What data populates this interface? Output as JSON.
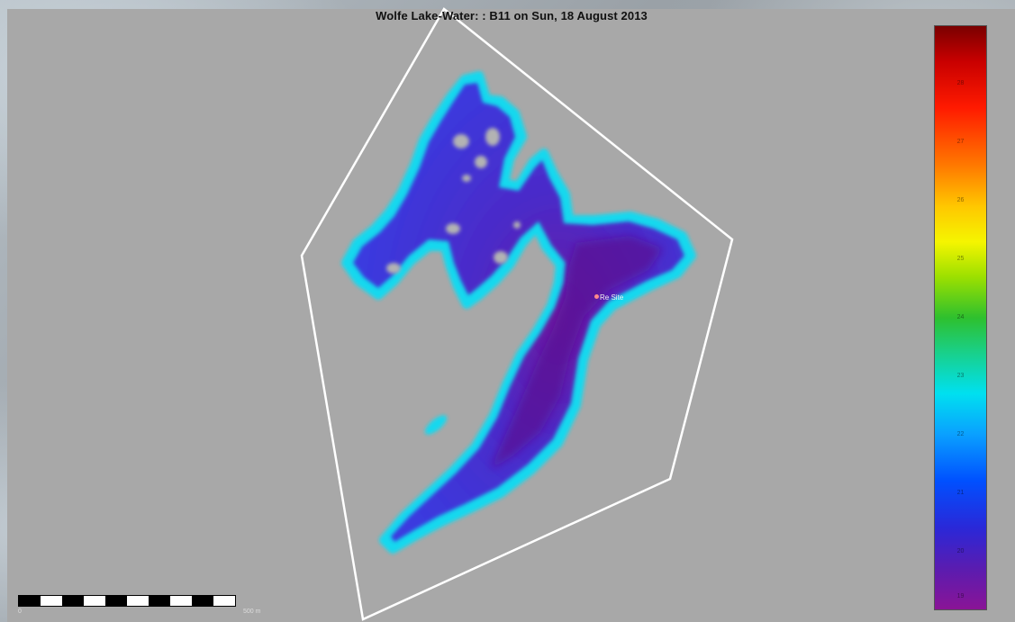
{
  "map": {
    "title": "Wolfe Lake-Water: : B11 on Sun, 18 August 2013",
    "station_label": "Re Site",
    "scale": {
      "start_label": "0",
      "end_label": "500 m",
      "segments": 10
    },
    "colorbar": {
      "tick_labels": [
        "28",
        "27",
        "26",
        "25",
        "24",
        "23",
        "22",
        "21",
        "20",
        "19"
      ]
    },
    "colors": {
      "panel_background": "#a8a8a8",
      "boundary_polygon": "#ffffff",
      "lake_fill": "#4a2fd0",
      "lake_edge": "#19d8ee",
      "station_marker": "#ff8a8a"
    }
  }
}
